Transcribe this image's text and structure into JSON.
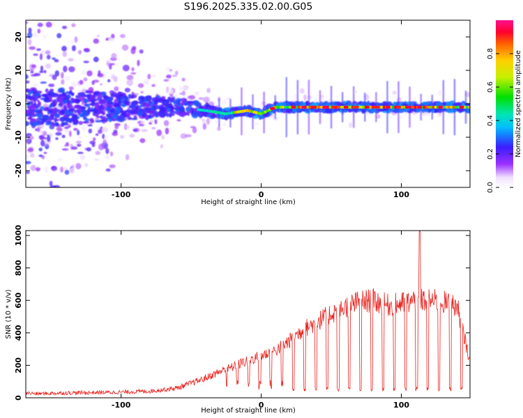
{
  "title": "S196.2025.335.02.00.G05",
  "chart_data": [
    {
      "type": "heatmap",
      "title": "S196.2025.335.02.00.G05",
      "xlabel": "Height of straight line (km)",
      "ylabel": "Frequency (Hz)",
      "xlim": [
        -168,
        149
      ],
      "ylim": [
        -25,
        25
      ],
      "x_ticks": [
        -100,
        0,
        100
      ],
      "x_tick_labels": [
        "-100",
        "0",
        "100"
      ],
      "y_ticks": [
        -20,
        -10,
        0,
        10,
        20
      ],
      "y_tick_labels": [
        "-20",
        "-10",
        "0",
        "10",
        "20"
      ],
      "colorbar": {
        "label": "Normalized spectral amplitude",
        "range": [
          0,
          1
        ],
        "ticks": [
          0.0,
          0.2,
          0.4,
          0.6,
          0.8
        ],
        "tick_labels": [
          "0.0",
          "0.2",
          "0.4",
          "0.6",
          "0.8"
        ]
      },
      "ridge_x": [
        -168,
        -120,
        -60,
        -40,
        -25,
        -10,
        0,
        10,
        40,
        80,
        110,
        149
      ],
      "ridge_freq": [
        -1,
        -1,
        -1,
        -2,
        -3,
        -2,
        -3,
        -1,
        -1,
        -1,
        -1,
        -1
      ]
    },
    {
      "type": "line",
      "xlabel": "Height of straight line (km)",
      "ylabel": "SNR (10 * v/v)",
      "xlim": [
        -168,
        149
      ],
      "ylim": [
        0,
        1030
      ],
      "x_ticks": [
        -100,
        0,
        100
      ],
      "x_tick_labels": [
        "-100",
        "0",
        "100"
      ],
      "y_ticks": [
        0,
        200,
        400,
        600,
        800,
        1000
      ],
      "y_tick_labels": [
        "0",
        "200",
        "400",
        "600",
        "800",
        "1000"
      ],
      "series": [
        {
          "name": "SNR",
          "color": "#e8201c",
          "x": [
            -168,
            -160,
            -140,
            -120,
            -100,
            -80,
            -60,
            -50,
            -40,
            -30,
            -20,
            -10,
            0,
            10,
            20,
            30,
            40,
            50,
            60,
            70,
            80,
            90,
            100,
            110,
            113,
            120,
            130,
            140,
            149
          ],
          "y": [
            30,
            25,
            30,
            32,
            35,
            40,
            60,
            90,
            120,
            160,
            190,
            230,
            260,
            290,
            350,
            420,
            470,
            520,
            560,
            590,
            600,
            570,
            580,
            600,
            1030,
            600,
            590,
            560,
            220
          ],
          "dropout_spacing_km": 8,
          "dropout_value": 40
        }
      ]
    }
  ]
}
